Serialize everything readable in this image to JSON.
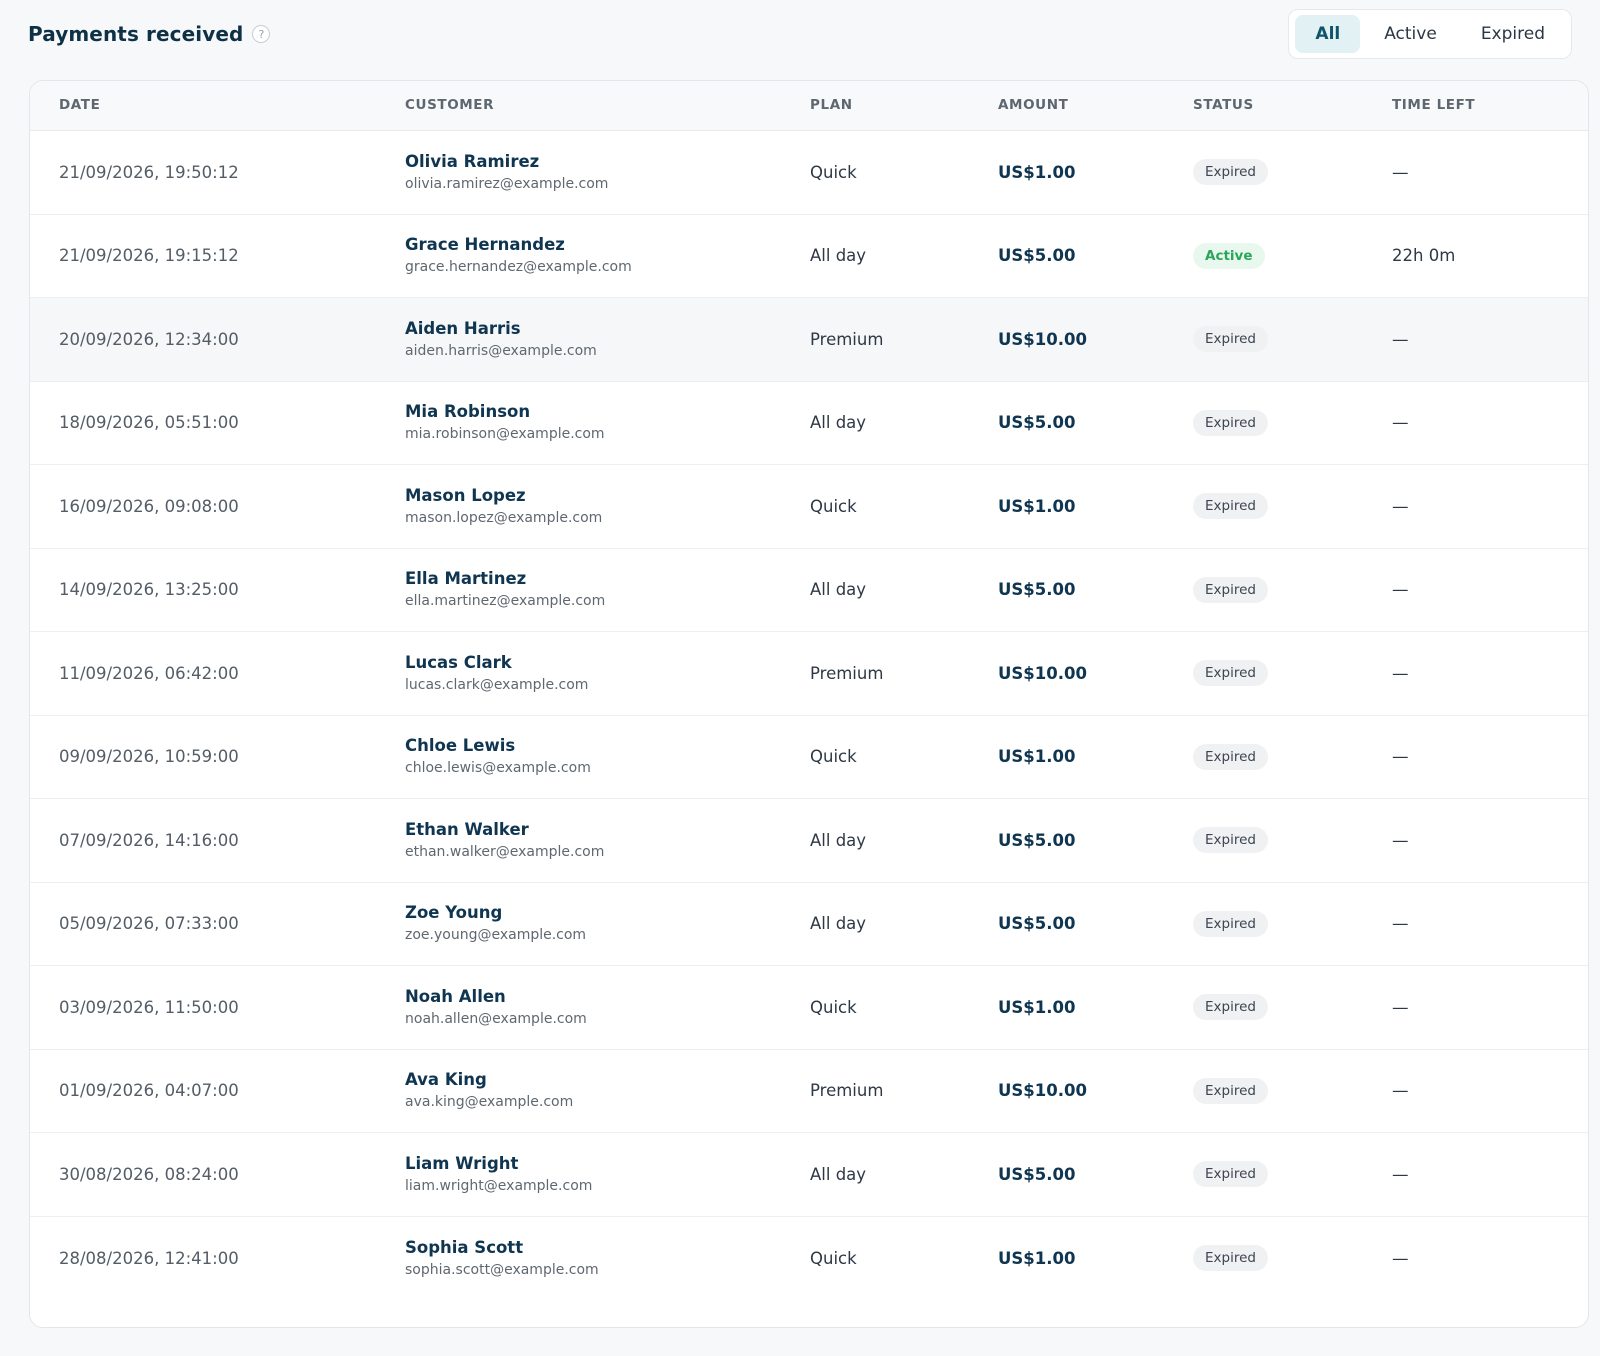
{
  "header": {
    "title": "Payments received",
    "help_icon": "?"
  },
  "filters": [
    {
      "label": "All",
      "selected": true
    },
    {
      "label": "Active",
      "selected": false
    },
    {
      "label": "Expired",
      "selected": false
    }
  ],
  "table": {
    "columns": [
      "DATE",
      "CUSTOMER",
      "PLAN",
      "AMOUNT",
      "STATUS",
      "TIME LEFT"
    ],
    "rows": [
      {
        "date": "21/09/2026, 19:50:12",
        "name": "Olivia Ramirez",
        "email": "olivia.ramirez@example.com",
        "plan": "Quick",
        "amount": "US$1.00",
        "status": "Expired",
        "time_left": "—"
      },
      {
        "date": "21/09/2026, 19:15:12",
        "name": "Grace Hernandez",
        "email": "grace.hernandez@example.com",
        "plan": "All day",
        "amount": "US$5.00",
        "status": "Active",
        "time_left": "22h 0m"
      },
      {
        "date": "20/09/2026, 12:34:00",
        "name": "Aiden Harris",
        "email": "aiden.harris@example.com",
        "plan": "Premium",
        "amount": "US$10.00",
        "status": "Expired",
        "time_left": "—"
      },
      {
        "date": "18/09/2026, 05:51:00",
        "name": "Mia Robinson",
        "email": "mia.robinson@example.com",
        "plan": "All day",
        "amount": "US$5.00",
        "status": "Expired",
        "time_left": "—"
      },
      {
        "date": "16/09/2026, 09:08:00",
        "name": "Mason Lopez",
        "email": "mason.lopez@example.com",
        "plan": "Quick",
        "amount": "US$1.00",
        "status": "Expired",
        "time_left": "—"
      },
      {
        "date": "14/09/2026, 13:25:00",
        "name": "Ella Martinez",
        "email": "ella.martinez@example.com",
        "plan": "All day",
        "amount": "US$5.00",
        "status": "Expired",
        "time_left": "—"
      },
      {
        "date": "11/09/2026, 06:42:00",
        "name": "Lucas Clark",
        "email": "lucas.clark@example.com",
        "plan": "Premium",
        "amount": "US$10.00",
        "status": "Expired",
        "time_left": "—"
      },
      {
        "date": "09/09/2026, 10:59:00",
        "name": "Chloe Lewis",
        "email": "chloe.lewis@example.com",
        "plan": "Quick",
        "amount": "US$1.00",
        "status": "Expired",
        "time_left": "—"
      },
      {
        "date": "07/09/2026, 14:16:00",
        "name": "Ethan Walker",
        "email": "ethan.walker@example.com",
        "plan": "All day",
        "amount": "US$5.00",
        "status": "Expired",
        "time_left": "—"
      },
      {
        "date": "05/09/2026, 07:33:00",
        "name": "Zoe Young",
        "email": "zoe.young@example.com",
        "plan": "All day",
        "amount": "US$5.00",
        "status": "Expired",
        "time_left": "—"
      },
      {
        "date": "03/09/2026, 11:50:00",
        "name": "Noah Allen",
        "email": "noah.allen@example.com",
        "plan": "Quick",
        "amount": "US$1.00",
        "status": "Expired",
        "time_left": "—"
      },
      {
        "date": "01/09/2026, 04:07:00",
        "name": "Ava King",
        "email": "ava.king@example.com",
        "plan": "Premium",
        "amount": "US$10.00",
        "status": "Expired",
        "time_left": "—"
      },
      {
        "date": "30/08/2026, 08:24:00",
        "name": "Liam Wright",
        "email": "liam.wright@example.com",
        "plan": "All day",
        "amount": "US$5.00",
        "status": "Expired",
        "time_left": "—"
      },
      {
        "date": "28/08/2026, 12:41:00",
        "name": "Sophia Scott",
        "email": "sophia.scott@example.com",
        "plan": "Quick",
        "amount": "US$1.00",
        "status": "Expired",
        "time_left": "—"
      }
    ]
  },
  "colors": {
    "accent": "#10546b",
    "active_badge": "#2aa55a",
    "title": "#0e3146"
  }
}
